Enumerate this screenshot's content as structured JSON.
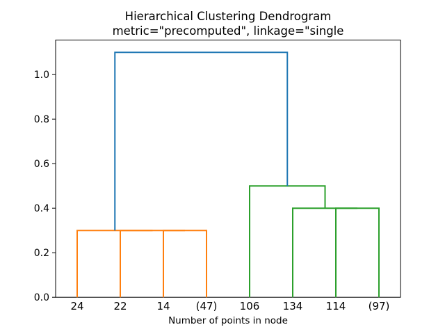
{
  "figure": {
    "background": "#ffffff"
  },
  "chart_data": {
    "type": "dendrogram",
    "title_line1": "Hierarchical Clustering Dendrogram",
    "title_line2": "metric=\"precomputed\", linkage=\"single",
    "xlabel": "Number of points in node",
    "ylabel": "",
    "grid": false,
    "legend": null,
    "xlim": [
      0,
      80
    ],
    "ylim": [
      0,
      1.155
    ],
    "y_ticks": [
      {
        "value": 0.0,
        "label": "0.0"
      },
      {
        "value": 0.2,
        "label": "0.2"
      },
      {
        "value": 0.4,
        "label": "0.4"
      },
      {
        "value": 0.6,
        "label": "0.6"
      },
      {
        "value": 0.8,
        "label": "0.8"
      },
      {
        "value": 1.0,
        "label": "1.0"
      }
    ],
    "leaves": [
      {
        "x": 5,
        "label": "24"
      },
      {
        "x": 15,
        "label": "22"
      },
      {
        "x": 25,
        "label": "14"
      },
      {
        "x": 35,
        "label": "(47)"
      },
      {
        "x": 45,
        "label": "106"
      },
      {
        "x": 55,
        "label": "134"
      },
      {
        "x": 65,
        "label": "114"
      },
      {
        "x": 75,
        "label": "(97)"
      }
    ],
    "colors": {
      "c0": "#1f77b4",
      "c1": "#ff7f0e",
      "c2": "#2ca02c",
      "axis": "#000000"
    },
    "links": [
      {
        "x1": 25,
        "y1": 0,
        "x2": 35,
        "y2": 0,
        "height": 0.3,
        "color": "c1"
      },
      {
        "x1": 15,
        "y1": 0,
        "x2": 30,
        "y2": 0.3,
        "height": 0.3,
        "color": "c1"
      },
      {
        "x1": 5,
        "y1": 0,
        "x2": 22.5,
        "y2": 0.3,
        "height": 0.3,
        "color": "c1"
      },
      {
        "x1": 65,
        "y1": 0,
        "x2": 75,
        "y2": 0,
        "height": 0.4,
        "color": "c2"
      },
      {
        "x1": 55,
        "y1": 0,
        "x2": 70,
        "y2": 0.4,
        "height": 0.4,
        "color": "c2"
      },
      {
        "x1": 45,
        "y1": 0,
        "x2": 62.5,
        "y2": 0.4,
        "height": 0.5,
        "color": "c2"
      },
      {
        "x1": 13.75,
        "y1": 0.3,
        "x2": 53.75,
        "y2": 0.5,
        "height": 1.1,
        "color": "c0"
      }
    ]
  }
}
